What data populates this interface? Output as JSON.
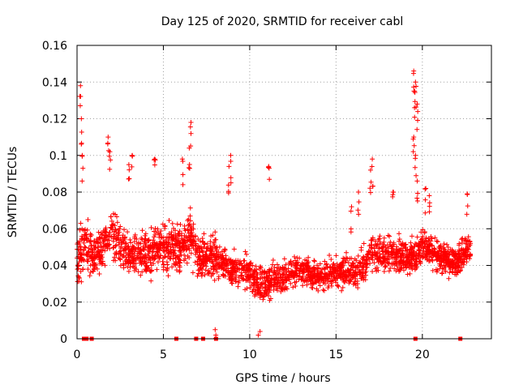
{
  "chart_data": {
    "type": "scatter",
    "title": "Day 125 of 2020, SRMTID for receiver cabl",
    "xlabel": "GPS time / hours",
    "ylabel": "SRMTID / TECUs",
    "xlim": [
      0,
      24
    ],
    "ylim": [
      0,
      0.16
    ],
    "xticks": [
      0,
      5,
      10,
      15,
      20
    ],
    "yticks": [
      0,
      0.02,
      0.04,
      0.06,
      0.08,
      0.1,
      0.12,
      0.14,
      0.16
    ],
    "xtick_labels": [
      "0",
      "5",
      "10",
      "15",
      "20"
    ],
    "ytick_labels": [
      "0",
      "0.02",
      "0.04",
      "0.06",
      "0.08",
      "0.1",
      "0.12",
      "0.14",
      "0.16"
    ],
    "grid": true,
    "marker": "plus",
    "marker_color": "#ff0000",
    "envelope": {
      "x": [
        0.0,
        0.5,
        1.0,
        1.5,
        2.0,
        3.0,
        4.0,
        5.0,
        6.0,
        6.5,
        7.0,
        8.0,
        9.0,
        10.0,
        10.5,
        11.0,
        12.0,
        13.0,
        14.0,
        15.0,
        16.0,
        16.5,
        17.0,
        18.0,
        19.0,
        19.7,
        20.0,
        21.0,
        22.0,
        22.8
      ],
      "mean": [
        0.045,
        0.05,
        0.045,
        0.05,
        0.058,
        0.045,
        0.045,
        0.05,
        0.05,
        0.055,
        0.045,
        0.045,
        0.038,
        0.036,
        0.028,
        0.03,
        0.034,
        0.038,
        0.034,
        0.036,
        0.036,
        0.038,
        0.048,
        0.046,
        0.045,
        0.045,
        0.052,
        0.045,
        0.042,
        0.05
      ],
      "spread": [
        0.025,
        0.025,
        0.02,
        0.02,
        0.022,
        0.02,
        0.02,
        0.022,
        0.02,
        0.022,
        0.02,
        0.018,
        0.016,
        0.016,
        0.016,
        0.015,
        0.014,
        0.014,
        0.013,
        0.014,
        0.014,
        0.015,
        0.016,
        0.016,
        0.016,
        0.016,
        0.016,
        0.015,
        0.015,
        0.015
      ]
    },
    "spikes": [
      {
        "x": 0.2,
        "y": 0.138
      },
      {
        "x": 0.25,
        "y": 0.12
      },
      {
        "x": 0.3,
        "y": 0.1
      },
      {
        "x": 1.8,
        "y": 0.11
      },
      {
        "x": 1.9,
        "y": 0.102
      },
      {
        "x": 3.0,
        "y": 0.095
      },
      {
        "x": 3.2,
        "y": 0.1
      },
      {
        "x": 4.5,
        "y": 0.098
      },
      {
        "x": 6.1,
        "y": 0.098
      },
      {
        "x": 6.6,
        "y": 0.118
      },
      {
        "x": 6.5,
        "y": 0.104
      },
      {
        "x": 8.9,
        "y": 0.1
      },
      {
        "x": 8.8,
        "y": 0.094
      },
      {
        "x": 11.1,
        "y": 0.094
      },
      {
        "x": 15.9,
        "y": 0.072
      },
      {
        "x": 16.3,
        "y": 0.08
      },
      {
        "x": 17.1,
        "y": 0.098
      },
      {
        "x": 17.0,
        "y": 0.092
      },
      {
        "x": 18.3,
        "y": 0.08
      },
      {
        "x": 19.5,
        "y": 0.146
      },
      {
        "x": 19.6,
        "y": 0.14
      },
      {
        "x": 19.55,
        "y": 0.135
      },
      {
        "x": 19.7,
        "y": 0.128
      },
      {
        "x": 19.5,
        "y": 0.11
      },
      {
        "x": 19.6,
        "y": 0.1
      },
      {
        "x": 19.7,
        "y": 0.086
      },
      {
        "x": 20.2,
        "y": 0.082
      },
      {
        "x": 20.4,
        "y": 0.078
      },
      {
        "x": 22.6,
        "y": 0.079
      },
      {
        "x": 8.0,
        "y": 0.005
      },
      {
        "x": 10.5,
        "y": 0.002
      },
      {
        "x": 10.6,
        "y": 0.004
      }
    ],
    "zero_markers_x": [
      0.4,
      0.55,
      0.85,
      5.75,
      6.9,
      7.3,
      8.05,
      19.6,
      22.2
    ]
  }
}
